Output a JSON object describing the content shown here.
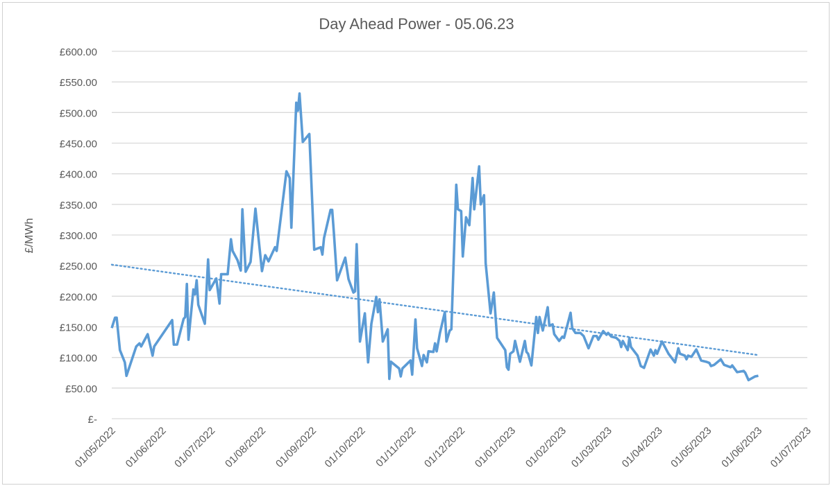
{
  "chart_data": {
    "type": "line",
    "title": "Day Ahead Power - 05.06.23",
    "xlabel": "",
    "ylabel": "£/MWh",
    "ylim": [
      0,
      600
    ],
    "ytick_values": [
      0,
      50,
      100,
      150,
      200,
      250,
      300,
      350,
      400,
      450,
      500,
      550,
      600
    ],
    "ytick_labels": [
      "£-",
      "£50.00",
      "£100.00",
      "£150.00",
      "£200.00",
      "£250.00",
      "£300.00",
      "£350.00",
      "£400.00",
      "£450.00",
      "£500.00",
      "£550.00",
      "£600.00"
    ],
    "xlim": [
      "2022-05-01",
      "2023-07-01"
    ],
    "xtick_values": [
      "2022-05-01",
      "2022-06-01",
      "2022-07-01",
      "2022-08-01",
      "2022-09-01",
      "2022-10-01",
      "2022-11-01",
      "2022-12-01",
      "2023-01-01",
      "2023-02-01",
      "2023-03-01",
      "2023-04-01",
      "2023-05-01",
      "2023-06-01",
      "2023-07-01"
    ],
    "xtick_labels": [
      "01/05/2022",
      "01/06/2022",
      "01/07/2022",
      "01/08/2022",
      "01/09/2022",
      "01/10/2022",
      "01/11/2022",
      "01/12/2022",
      "01/01/2023",
      "01/02/2023",
      "01/03/2023",
      "01/04/2023",
      "01/05/2023",
      "01/06/2023",
      "01/07/2023"
    ],
    "grid": "horizontal",
    "legend": "none",
    "series": [
      {
        "color": "#5b9bd5",
        "trendline": "linear",
        "trendline_style": "dotted",
        "points": [
          [
            "2022-05-01",
            148
          ],
          [
            "2022-05-03",
            165
          ],
          [
            "2022-05-04",
            165
          ],
          [
            "2022-05-06",
            112
          ],
          [
            "2022-05-09",
            92
          ],
          [
            "2022-05-10",
            70
          ],
          [
            "2022-05-16",
            118
          ],
          [
            "2022-05-18",
            123
          ],
          [
            "2022-05-19",
            118
          ],
          [
            "2022-05-23",
            138
          ],
          [
            "2022-05-26",
            103
          ],
          [
            "2022-05-27",
            118
          ],
          [
            "2022-06-07",
            161
          ],
          [
            "2022-06-08",
            121
          ],
          [
            "2022-06-10",
            121
          ],
          [
            "2022-06-14",
            163
          ],
          [
            "2022-06-15",
            166
          ],
          [
            "2022-06-16",
            220
          ],
          [
            "2022-06-17",
            129
          ],
          [
            "2022-06-20",
            211
          ],
          [
            "2022-06-21",
            203
          ],
          [
            "2022-06-22",
            226
          ],
          [
            "2022-06-23",
            186
          ],
          [
            "2022-06-27",
            155
          ],
          [
            "2022-06-29",
            260
          ],
          [
            "2022-06-30",
            210
          ],
          [
            "2022-07-04",
            229
          ],
          [
            "2022-07-06",
            188
          ],
          [
            "2022-07-07",
            236
          ],
          [
            "2022-07-11",
            236
          ],
          [
            "2022-07-13",
            293
          ],
          [
            "2022-07-14",
            274
          ],
          [
            "2022-07-17",
            259
          ],
          [
            "2022-07-19",
            242
          ],
          [
            "2022-07-20",
            342
          ],
          [
            "2022-07-22",
            240
          ],
          [
            "2022-07-25",
            256
          ],
          [
            "2022-07-28",
            343
          ],
          [
            "2022-08-01",
            241
          ],
          [
            "2022-08-03",
            267
          ],
          [
            "2022-08-05",
            257
          ],
          [
            "2022-08-09",
            280
          ],
          [
            "2022-08-10",
            274
          ],
          [
            "2022-08-16",
            404
          ],
          [
            "2022-08-18",
            393
          ],
          [
            "2022-08-19",
            312
          ],
          [
            "2022-08-22",
            516
          ],
          [
            "2022-08-23",
            503
          ],
          [
            "2022-08-24",
            531
          ],
          [
            "2022-08-26",
            452
          ],
          [
            "2022-08-30",
            465
          ],
          [
            "2022-09-02",
            276
          ],
          [
            "2022-09-06",
            280
          ],
          [
            "2022-09-07",
            268
          ],
          [
            "2022-09-08",
            295
          ],
          [
            "2022-09-12",
            341
          ],
          [
            "2022-09-13",
            341
          ],
          [
            "2022-09-14",
            305
          ],
          [
            "2022-09-16",
            226
          ],
          [
            "2022-09-21",
            263
          ],
          [
            "2022-09-23",
            228
          ],
          [
            "2022-09-26",
            206
          ],
          [
            "2022-09-27",
            208
          ],
          [
            "2022-09-28",
            285
          ],
          [
            "2022-09-30",
            126
          ],
          [
            "2022-10-03",
            172
          ],
          [
            "2022-10-05",
            92
          ],
          [
            "2022-10-07",
            155
          ],
          [
            "2022-10-10",
            199
          ],
          [
            "2022-10-11",
            174
          ],
          [
            "2022-10-12",
            195
          ],
          [
            "2022-10-14",
            126
          ],
          [
            "2022-10-17",
            146
          ],
          [
            "2022-10-18",
            65
          ],
          [
            "2022-10-19",
            93
          ],
          [
            "2022-10-24",
            82
          ],
          [
            "2022-10-25",
            69
          ],
          [
            "2022-10-26",
            82
          ],
          [
            "2022-10-31",
            95
          ],
          [
            "2022-11-01",
            72
          ],
          [
            "2022-11-03",
            162
          ],
          [
            "2022-11-04",
            115
          ],
          [
            "2022-11-07",
            86
          ],
          [
            "2022-11-08",
            104
          ],
          [
            "2022-11-10",
            92
          ],
          [
            "2022-11-11",
            110
          ],
          [
            "2022-11-14",
            109
          ],
          [
            "2022-11-15",
            123
          ],
          [
            "2022-11-16",
            110
          ],
          [
            "2022-11-18",
            140
          ],
          [
            "2022-11-21",
            174
          ],
          [
            "2022-11-22",
            126
          ],
          [
            "2022-11-24",
            144
          ],
          [
            "2022-11-25",
            146
          ],
          [
            "2022-11-28",
            382
          ],
          [
            "2022-11-29",
            342
          ],
          [
            "2022-12-01",
            339
          ],
          [
            "2022-12-02",
            265
          ],
          [
            "2022-12-04",
            329
          ],
          [
            "2022-12-06",
            316
          ],
          [
            "2022-12-08",
            393
          ],
          [
            "2022-12-09",
            342
          ],
          [
            "2022-12-12",
            412
          ],
          [
            "2022-12-13",
            350
          ],
          [
            "2022-12-15",
            365
          ],
          [
            "2022-12-16",
            254
          ],
          [
            "2022-12-19",
            172
          ],
          [
            "2022-12-21",
            206
          ],
          [
            "2022-12-23",
            132
          ],
          [
            "2022-12-28",
            112
          ],
          [
            "2022-12-29",
            84
          ],
          [
            "2022-12-30",
            80
          ],
          [
            "2022-12-31",
            106
          ],
          [
            "2023-01-02",
            110
          ],
          [
            "2023-01-03",
            127
          ],
          [
            "2023-01-06",
            93
          ],
          [
            "2023-01-09",
            127
          ],
          [
            "2023-01-10",
            109
          ],
          [
            "2023-01-11",
            106
          ],
          [
            "2023-01-13",
            87
          ],
          [
            "2023-01-16",
            166
          ],
          [
            "2023-01-17",
            140
          ],
          [
            "2023-01-18",
            166
          ],
          [
            "2023-01-20",
            144
          ],
          [
            "2023-01-23",
            182
          ],
          [
            "2023-01-24",
            152
          ],
          [
            "2023-01-26",
            154
          ],
          [
            "2023-01-27",
            138
          ],
          [
            "2023-01-30",
            127
          ],
          [
            "2023-02-01",
            134
          ],
          [
            "2023-02-02",
            132
          ],
          [
            "2023-02-06",
            173
          ],
          [
            "2023-02-07",
            148
          ],
          [
            "2023-02-09",
            140
          ],
          [
            "2023-02-12",
            140
          ],
          [
            "2023-02-14",
            135
          ],
          [
            "2023-02-17",
            115
          ],
          [
            "2023-02-20",
            135
          ],
          [
            "2023-02-22",
            135
          ],
          [
            "2023-02-23",
            129
          ],
          [
            "2023-02-26",
            143
          ],
          [
            "2023-02-28",
            137
          ],
          [
            "2023-03-01",
            140
          ],
          [
            "2023-03-03",
            134
          ],
          [
            "2023-03-06",
            132
          ],
          [
            "2023-03-08",
            127
          ],
          [
            "2023-03-09",
            117
          ],
          [
            "2023-03-10",
            127
          ],
          [
            "2023-03-13",
            112
          ],
          [
            "2023-03-14",
            132
          ],
          [
            "2023-03-15",
            117
          ],
          [
            "2023-03-19",
            103
          ],
          [
            "2023-03-21",
            86
          ],
          [
            "2023-03-23",
            83
          ],
          [
            "2023-03-27",
            113
          ],
          [
            "2023-03-29",
            103
          ],
          [
            "2023-03-30",
            112
          ],
          [
            "2023-03-31",
            106
          ],
          [
            "2023-04-03",
            126
          ],
          [
            "2023-04-07",
            106
          ],
          [
            "2023-04-11",
            92
          ],
          [
            "2023-04-13",
            115
          ],
          [
            "2023-04-14",
            106
          ],
          [
            "2023-04-17",
            103
          ],
          [
            "2023-04-18",
            97
          ],
          [
            "2023-04-19",
            103
          ],
          [
            "2023-04-21",
            101
          ],
          [
            "2023-04-24",
            113
          ],
          [
            "2023-04-27",
            95
          ],
          [
            "2023-04-30",
            93
          ],
          [
            "2023-05-02",
            91
          ],
          [
            "2023-05-03",
            86
          ],
          [
            "2023-05-05",
            88
          ],
          [
            "2023-05-09",
            97
          ],
          [
            "2023-05-11",
            88
          ],
          [
            "2023-05-15",
            84
          ],
          [
            "2023-05-16",
            87
          ],
          [
            "2023-05-19",
            76
          ],
          [
            "2023-05-23",
            78
          ],
          [
            "2023-05-24",
            75
          ],
          [
            "2023-05-26",
            63
          ],
          [
            "2023-05-30",
            69
          ],
          [
            "2023-06-01",
            70
          ]
        ]
      }
    ]
  },
  "colors": {
    "series": "#5b9bd5",
    "trendline": "#5b9bd5",
    "grid": "#d9d9d9",
    "text": "#595959"
  }
}
